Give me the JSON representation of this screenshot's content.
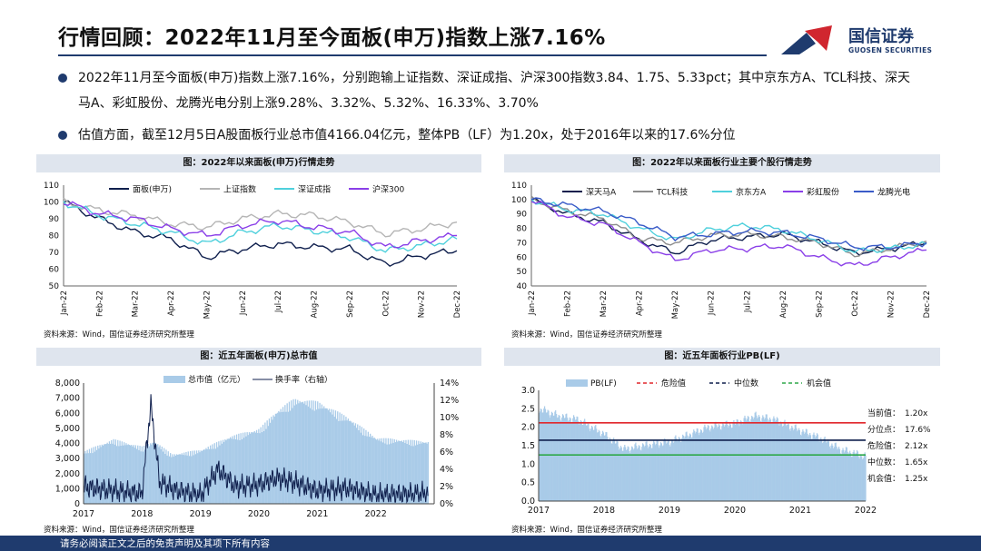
{
  "header": {
    "title": "行情回顾：2022年11月至今面板(申万)指数上涨7.16%",
    "logo_name": "国信证券",
    "logo_sub": "GUOSEN SECURITIES"
  },
  "bullets": [
    "2022年11月至今面板(申万)指数上涨7.16%，分别跑输上证指数、深证成指、沪深300指数3.84、1.75、5.33pct；其中京东方A、TCL科技、深天马A、彩虹股份、龙腾光电分别上涨9.28%、3.32%、5.32%、16.33%、3.70%",
    "估值方面，截至12月5日A股面板行业总市值4166.04亿元，整体PB（LF）为1.20x，处于2016年以来的17.6%分位"
  ],
  "footer": {
    "disclaimer": "请务必阅读正文之后的免责声明及其项下所有内容"
  },
  "colors": {
    "brand": "#1f3b6e",
    "panel_bg": "#dfe5ee",
    "logo_red": "#d0262f"
  },
  "chart_data": [
    {
      "type": "line",
      "title": "图：2022年以来面板(申万)行情走势",
      "source": "资料来源：Wind，国信证券经济研究所整理",
      "x": [
        "Jan-22",
        "Feb-22",
        "Mar-22",
        "Apr-22",
        "May-22",
        "Jun-22",
        "Jul-22",
        "Aug-22",
        "Sep-22",
        "Oct-22",
        "Nov-22",
        "Dec-22"
      ],
      "ylim": [
        50,
        110
      ],
      "yticks": [
        50,
        60,
        70,
        80,
        90,
        100,
        110
      ],
      "series": [
        {
          "name": "面板(申万)",
          "color": "#0f1f4d",
          "values": [
            100,
            90,
            82,
            78,
            67,
            72,
            75,
            73,
            72,
            63,
            68,
            71
          ]
        },
        {
          "name": "上证指数",
          "color": "#b5b5b5",
          "values": [
            100,
            95,
            92,
            87,
            85,
            90,
            93,
            92,
            88,
            81,
            84,
            88
          ]
        },
        {
          "name": "深证成指",
          "color": "#4fd0dc",
          "values": [
            100,
            92,
            87,
            82,
            75,
            82,
            86,
            83,
            79,
            71,
            74,
            78
          ]
        },
        {
          "name": "沪深300",
          "color": "#8a3fe8",
          "values": [
            100,
            93,
            90,
            84,
            80,
            86,
            89,
            85,
            82,
            73,
            77,
            80
          ]
        }
      ]
    },
    {
      "type": "line",
      "title": "图：2022年以来面板行业主要个股行情走势",
      "source": "资料来源：Wind，国信证券经济研究所整理",
      "x": [
        "Jan-22",
        "Feb-22",
        "Mar-22",
        "Apr-22",
        "May-22",
        "Jun-22",
        "Jul-22",
        "Aug-22",
        "Sep-22",
        "Oct-22",
        "Nov-22",
        "Dec-22"
      ],
      "ylim": [
        40,
        110
      ],
      "yticks": [
        40,
        50,
        60,
        70,
        80,
        90,
        100,
        110
      ],
      "series": [
        {
          "name": "深天马A",
          "color": "#0f1f4d",
          "values": [
            100,
            90,
            84,
            72,
            63,
            72,
            74,
            76,
            70,
            63,
            66,
            70
          ]
        },
        {
          "name": "TCL科技",
          "color": "#8c8c8c",
          "values": [
            100,
            92,
            87,
            73,
            70,
            75,
            76,
            74,
            70,
            62,
            66,
            71
          ]
        },
        {
          "name": "京东方A",
          "color": "#4fd0dc",
          "values": [
            100,
            93,
            90,
            80,
            72,
            79,
            82,
            79,
            72,
            64,
            66,
            69
          ]
        },
        {
          "name": "彩虹股份",
          "color": "#8a3fe8",
          "values": [
            100,
            88,
            83,
            70,
            58,
            65,
            66,
            68,
            60,
            54,
            60,
            65
          ]
        },
        {
          "name": "龙腾光电",
          "color": "#3a5bc8",
          "values": [
            100,
            96,
            92,
            84,
            74,
            76,
            78,
            77,
            73,
            67,
            67,
            70
          ]
        }
      ]
    },
    {
      "type": "bar",
      "title": "图：近五年面板(申万)总市值",
      "source": "资料来源：Wind，国信证券经济研究所整理",
      "x": [
        "2017",
        "2018",
        "2019",
        "2020",
        "2021",
        "2022"
      ],
      "ylim": [
        0,
        8000
      ],
      "yticks": [
        "0",
        "1,000",
        "2,000",
        "3,000",
        "4,000",
        "5,000",
        "6,000",
        "7,000",
        "8,000"
      ],
      "y2lim": [
        0,
        14
      ],
      "y2ticks": [
        "0%",
        "2%",
        "4%",
        "6%",
        "8%",
        "10%",
        "12%",
        "14%"
      ],
      "series": [
        {
          "name": "总市值（亿元）",
          "color": "#a9cbe8",
          "x": [
            2017,
            2017.5,
            2018,
            2018.2,
            2018.5,
            2019,
            2019.5,
            2020,
            2020.3,
            2020.6,
            2021,
            2021.5,
            2022,
            2022.9
          ],
          "values": [
            3500,
            4300,
            3800,
            4200,
            3300,
            3600,
            4500,
            5000,
            6200,
            7000,
            6800,
            5800,
            4400,
            4150
          ]
        },
        {
          "name": "换手率（右轴）",
          "color": "#0f1f4d",
          "x": [
            2017,
            2017.5,
            2018,
            2018.15,
            2018.3,
            2018.6,
            2019,
            2019.3,
            2019.6,
            2020,
            2020.3,
            2020.6,
            2021,
            2021.5,
            2022,
            2022.9
          ],
          "values": [
            2.0,
            1.5,
            1.2,
            11.5,
            2.5,
            1.5,
            1.0,
            4.0,
            2.0,
            2.2,
            3.0,
            2.5,
            1.5,
            1.8,
            1.0,
            1.2
          ]
        }
      ]
    },
    {
      "type": "area",
      "title": "图：近五年面板行业PB(LF)",
      "source": "资料来源：Wind，国信证券经济研究所整理",
      "x": [
        "2017",
        "2018",
        "2019",
        "2020",
        "2021",
        "2022"
      ],
      "ylim": [
        0,
        3.0
      ],
      "yticks": [
        "0.0",
        "0.5",
        "1.0",
        "1.5",
        "2.0",
        "2.5",
        "3.0"
      ],
      "series": [
        {
          "name": "PB(LF)",
          "color": "#a9cbe8",
          "x": [
            2017,
            2017.3,
            2017.6,
            2018,
            2018.3,
            2018.6,
            2019,
            2019.3,
            2019.6,
            2020,
            2020.3,
            2020.6,
            2021,
            2021.3,
            2021.6,
            2022,
            2022.5,
            2022.9
          ],
          "values": [
            2.5,
            2.3,
            2.2,
            1.8,
            1.4,
            1.5,
            1.6,
            1.8,
            2.0,
            2.1,
            2.3,
            2.2,
            1.9,
            1.7,
            1.4,
            1.2,
            1.15,
            1.2
          ]
        }
      ],
      "reference_lines": [
        {
          "name": "危险值",
          "value": 2.12,
          "color": "#e0262b",
          "dash": "4,3"
        },
        {
          "name": "中位数",
          "value": 1.65,
          "color": "#0f1f4d",
          "dash": "4,3"
        },
        {
          "name": "机会值",
          "value": 1.25,
          "color": "#2ea84a",
          "dash": "4,3"
        }
      ],
      "annotations": [
        {
          "label": "当前值：",
          "value": "1.20x"
        },
        {
          "label": "分位点：",
          "value": "17.6%"
        },
        {
          "label": "危险值：",
          "value": "2.12x"
        },
        {
          "label": "中位数：",
          "value": "1.65x"
        },
        {
          "label": "机会值：",
          "value": "1.25x"
        }
      ]
    }
  ]
}
